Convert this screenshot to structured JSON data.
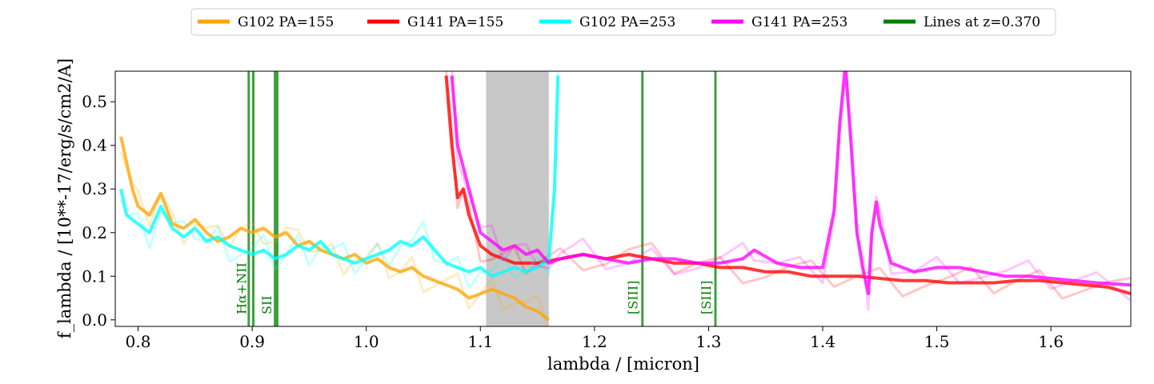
{
  "chart_data": {
    "type": "line",
    "xlabel": "lambda / [micron]",
    "ylabel": "f_lambda / [10**-17/erg/s/cm2/A]",
    "xlim": [
      0.78,
      1.67
    ],
    "ylim": [
      -0.015,
      0.57
    ],
    "xticks": [
      0.8,
      0.9,
      1.0,
      1.1,
      1.2,
      1.3,
      1.4,
      1.5,
      1.6
    ],
    "xtick_labels": [
      "0.8",
      "0.9",
      "1.0",
      "1.1",
      "1.2",
      "1.3",
      "1.4",
      "1.5",
      "1.6"
    ],
    "yticks": [
      0.0,
      0.1,
      0.2,
      0.3,
      0.4,
      0.5
    ],
    "ytick_labels": [
      "0.0",
      "0.1",
      "0.2",
      "0.3",
      "0.4",
      "0.5"
    ],
    "grid": false,
    "legend_position": "top-center, above plot",
    "shaded_region": {
      "x": [
        1.105,
        1.16
      ],
      "color": "#c8c8c8"
    },
    "series": [
      {
        "name": "G102 PA=155",
        "color": "#ffa500",
        "x": [
          0.785,
          0.79,
          0.795,
          0.8,
          0.81,
          0.82,
          0.83,
          0.84,
          0.85,
          0.86,
          0.87,
          0.88,
          0.89,
          0.9,
          0.91,
          0.92,
          0.93,
          0.94,
          0.95,
          0.96,
          0.97,
          0.98,
          0.99,
          1.0,
          1.01,
          1.02,
          1.03,
          1.04,
          1.05,
          1.06,
          1.07,
          1.08,
          1.09,
          1.1,
          1.11,
          1.12,
          1.13,
          1.14,
          1.15,
          1.16
        ],
        "y": [
          0.42,
          0.36,
          0.3,
          0.26,
          0.24,
          0.29,
          0.22,
          0.21,
          0.23,
          0.2,
          0.18,
          0.19,
          0.21,
          0.2,
          0.21,
          0.19,
          0.2,
          0.17,
          0.18,
          0.16,
          0.15,
          0.14,
          0.15,
          0.13,
          0.14,
          0.12,
          0.11,
          0.12,
          0.1,
          0.09,
          0.08,
          0.07,
          0.05,
          0.06,
          0.07,
          0.06,
          0.05,
          0.03,
          0.02,
          0.0
        ]
      },
      {
        "name": "G141 PA=155",
        "color": "#ff0000",
        "x": [
          1.07,
          1.075,
          1.08,
          1.085,
          1.09,
          1.1,
          1.11,
          1.12,
          1.13,
          1.14,
          1.15,
          1.17,
          1.19,
          1.21,
          1.23,
          1.25,
          1.27,
          1.29,
          1.31,
          1.33,
          1.35,
          1.37,
          1.39,
          1.41,
          1.43,
          1.45,
          1.47,
          1.49,
          1.51,
          1.53,
          1.55,
          1.57,
          1.59,
          1.61,
          1.63,
          1.65,
          1.67
        ],
        "y": [
          0.56,
          0.4,
          0.28,
          0.3,
          0.24,
          0.17,
          0.15,
          0.14,
          0.13,
          0.13,
          0.13,
          0.14,
          0.15,
          0.14,
          0.15,
          0.14,
          0.13,
          0.13,
          0.12,
          0.12,
          0.11,
          0.11,
          0.1,
          0.1,
          0.1,
          0.095,
          0.09,
          0.09,
          0.085,
          0.085,
          0.085,
          0.09,
          0.09,
          0.085,
          0.08,
          0.075,
          0.06
        ]
      },
      {
        "name": "G102 PA=253",
        "color": "#00ffff",
        "x": [
          0.785,
          0.79,
          0.8,
          0.81,
          0.82,
          0.83,
          0.84,
          0.85,
          0.86,
          0.87,
          0.88,
          0.89,
          0.9,
          0.91,
          0.92,
          0.93,
          0.94,
          0.95,
          0.96,
          0.97,
          0.98,
          0.99,
          1.0,
          1.01,
          1.02,
          1.03,
          1.04,
          1.05,
          1.06,
          1.07,
          1.08,
          1.09,
          1.1,
          1.11,
          1.12,
          1.13,
          1.14,
          1.15,
          1.16,
          1.165,
          1.168
        ],
        "y": [
          0.3,
          0.24,
          0.22,
          0.2,
          0.26,
          0.21,
          0.19,
          0.21,
          0.18,
          0.19,
          0.17,
          0.16,
          0.15,
          0.16,
          0.14,
          0.15,
          0.17,
          0.16,
          0.18,
          0.15,
          0.14,
          0.13,
          0.14,
          0.15,
          0.16,
          0.18,
          0.17,
          0.19,
          0.16,
          0.13,
          0.12,
          0.11,
          0.12,
          0.1,
          0.11,
          0.12,
          0.11,
          0.12,
          0.14,
          0.3,
          0.56
        ]
      },
      {
        "name": "G141 PA=253",
        "color": "#ff00ff",
        "x": [
          1.075,
          1.08,
          1.09,
          1.1,
          1.11,
          1.12,
          1.13,
          1.14,
          1.15,
          1.16,
          1.17,
          1.19,
          1.21,
          1.23,
          1.25,
          1.27,
          1.29,
          1.31,
          1.33,
          1.34,
          1.36,
          1.38,
          1.4,
          1.41,
          1.415,
          1.42,
          1.425,
          1.43,
          1.435,
          1.44,
          1.443,
          1.447,
          1.45,
          1.46,
          1.48,
          1.5,
          1.52,
          1.54,
          1.56,
          1.58,
          1.6,
          1.62,
          1.64,
          1.67
        ],
        "y": [
          0.56,
          0.4,
          0.3,
          0.2,
          0.18,
          0.16,
          0.17,
          0.15,
          0.16,
          0.13,
          0.14,
          0.15,
          0.14,
          0.13,
          0.14,
          0.14,
          0.13,
          0.13,
          0.14,
          0.16,
          0.13,
          0.12,
          0.12,
          0.25,
          0.45,
          0.58,
          0.4,
          0.2,
          0.12,
          0.06,
          0.2,
          0.27,
          0.22,
          0.13,
          0.11,
          0.12,
          0.12,
          0.11,
          0.1,
          0.1,
          0.095,
          0.09,
          0.085,
          0.08
        ]
      }
    ],
    "lines": {
      "legend": "Lines at z=0.370",
      "color": "#007f00",
      "positions": [
        0.897,
        0.901,
        0.92,
        0.922,
        1.242,
        1.306
      ],
      "labels": [
        {
          "text": "Hα+NII",
          "x": 0.899
        },
        {
          "text": "SII",
          "x": 0.921
        },
        {
          "text": "[SIII]",
          "x": 1.242
        },
        {
          "text": "[SIII]",
          "x": 1.306
        }
      ]
    }
  }
}
